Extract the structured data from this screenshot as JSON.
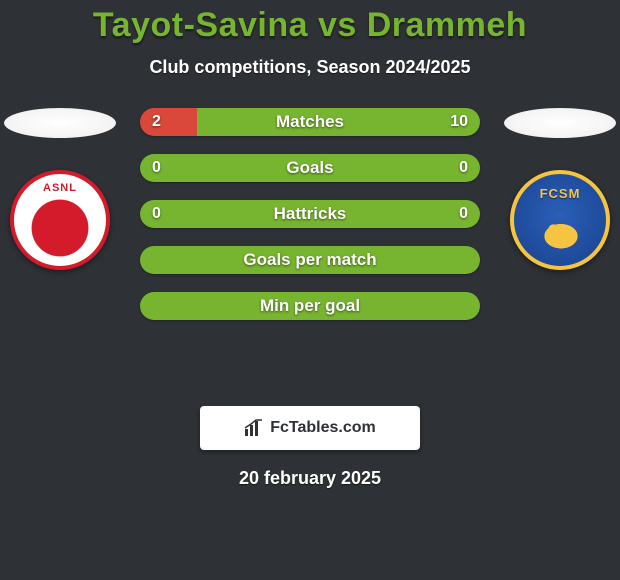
{
  "header": {
    "title": "Tayot-Savina vs Drammeh",
    "title_color": "#77b42f",
    "title_fontsize": 34,
    "subtitle": "Club competitions, Season 2024/2025",
    "subtitle_color": "#ffffff",
    "subtitle_fontsize": 18
  },
  "background_color": "#2e3135",
  "teams": {
    "left": {
      "name": "ASNL",
      "badge_primary": "#d41b2c",
      "badge_secondary": "#ffffff"
    },
    "right": {
      "name": "FCSM",
      "badge_primary": "#2a5fb8",
      "badge_secondary": "#f5c542"
    }
  },
  "bars": {
    "label_fontsize": 17,
    "value_fontsize": 16,
    "items": [
      {
        "label": "Matches",
        "left_value": "2",
        "right_value": "10",
        "left_color": "#d9483b",
        "right_color": "#77b42f",
        "left_pct": 16.7,
        "right_pct": 83.3
      },
      {
        "label": "Goals",
        "left_value": "0",
        "right_value": "0",
        "left_color": "#77b42f",
        "right_color": "#77b42f",
        "left_pct": 50,
        "right_pct": 50
      },
      {
        "label": "Hattricks",
        "left_value": "0",
        "right_value": "0",
        "left_color": "#77b42f",
        "right_color": "#77b42f",
        "left_pct": 50,
        "right_pct": 50
      },
      {
        "label": "Goals per match",
        "left_value": "",
        "right_value": "",
        "left_color": "#77b42f",
        "right_color": "#77b42f",
        "left_pct": 50,
        "right_pct": 50
      },
      {
        "label": "Min per goal",
        "left_value": "",
        "right_value": "",
        "left_color": "#77b42f",
        "right_color": "#77b42f",
        "left_pct": 50,
        "right_pct": 50
      }
    ]
  },
  "footer": {
    "brand_icon": "bar-chart-icon",
    "brand_text": "FcTables.com",
    "brand_text_color": "#2e3135",
    "brand_bg": "#ffffff",
    "date": "20 february 2025",
    "date_fontsize": 18
  }
}
